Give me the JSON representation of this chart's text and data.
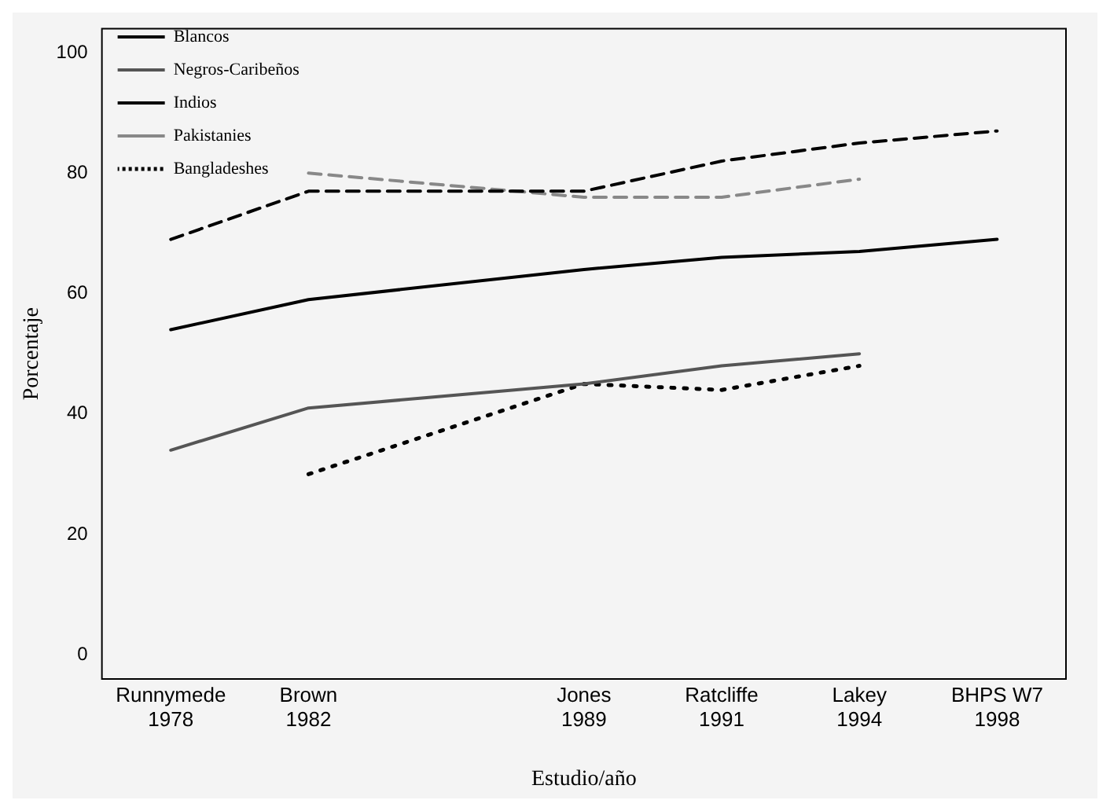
{
  "chart_data": {
    "type": "line",
    "xlabel": "Estudio/año",
    "ylabel": "Porcentaje",
    "categories": [
      "Runnymede 1978",
      "Brown 1982",
      null,
      "Jones 1989",
      "Ratcliffe 1991",
      "Lakey 1994",
      "BHPS W7 1998"
    ],
    "series": [
      {
        "name": "Blancos",
        "color": "#000000",
        "line_style": "solid",
        "values": [
          54,
          59,
          null,
          64,
          66,
          67,
          69
        ]
      },
      {
        "name": "Negros-Caribeños",
        "color": "#555555",
        "line_style": "solid",
        "values": [
          34,
          41,
          null,
          45,
          48,
          50,
          null
        ]
      },
      {
        "name": "Indios",
        "color": "#000000",
        "line_style": "dashed",
        "values": [
          69,
          77,
          null,
          77,
          82,
          85,
          87
        ]
      },
      {
        "name": "Pakistanies",
        "color": "#888888",
        "line_style": "dashed",
        "values": [
          null,
          80,
          null,
          76,
          76,
          79,
          null
        ]
      },
      {
        "name": "Bangladeshes",
        "color": "#000000",
        "line_style": "dotted",
        "values": [
          null,
          30,
          null,
          45,
          44,
          48,
          null
        ]
      }
    ],
    "ylim": [
      -4,
      104
    ],
    "yticks": [
      0,
      20,
      40,
      60,
      80,
      100
    ],
    "grid": false,
    "legend": "top left",
    "marker": "none"
  }
}
